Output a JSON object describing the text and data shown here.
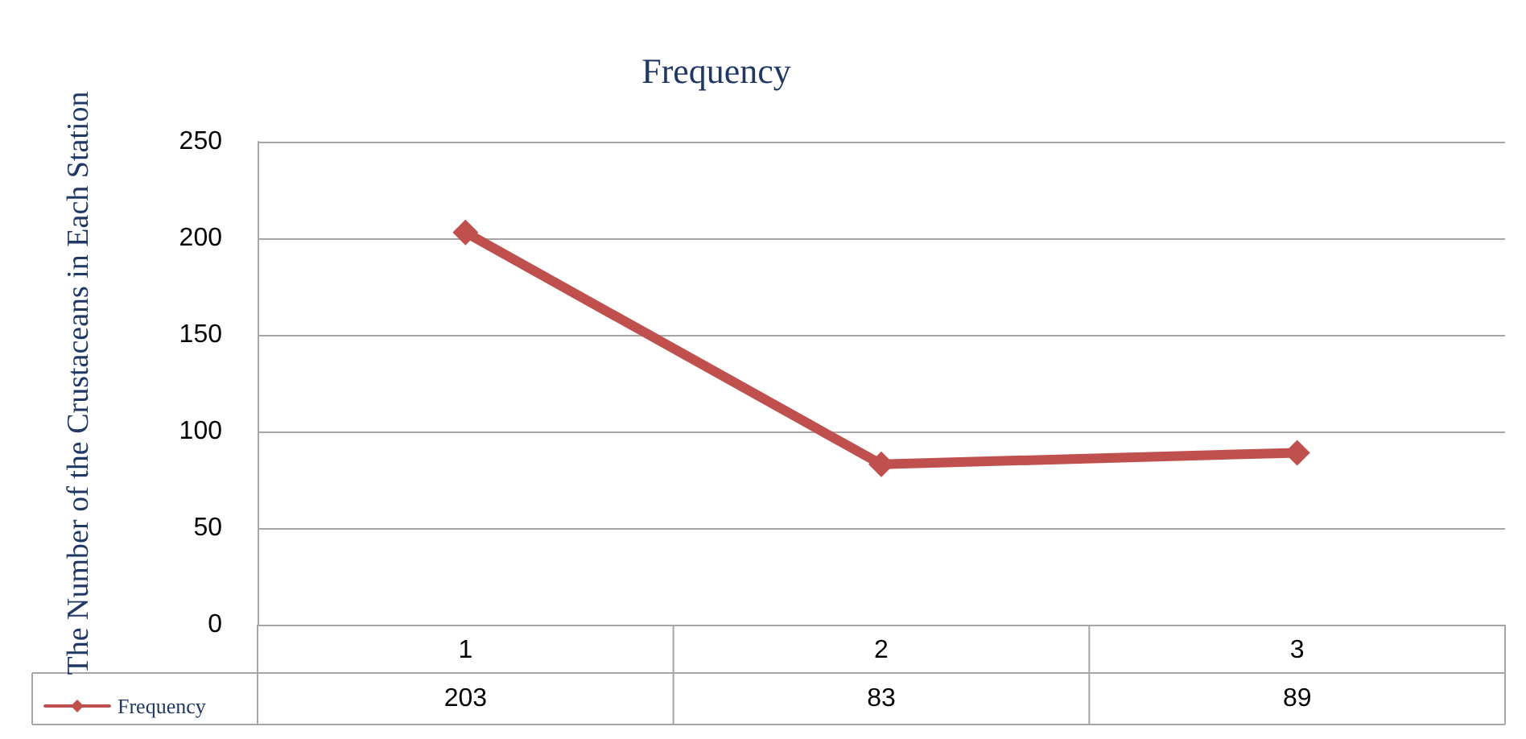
{
  "chart_data": {
    "type": "line",
    "title": "Frequency",
    "ylabel": "The Number of the Crustaceans in Each Station",
    "categories": [
      "1",
      "2",
      "3"
    ],
    "series": [
      {
        "name": "Frequency",
        "color": "#c0504d",
        "values": [
          203,
          83,
          89
        ]
      }
    ],
    "ylim": [
      0,
      250
    ],
    "yticks": [
      0,
      50,
      100,
      150,
      200,
      250
    ],
    "grid": "y",
    "marker": "diamond",
    "line_style": "solid",
    "legend": "bottom left",
    "data_labels": true
  }
}
